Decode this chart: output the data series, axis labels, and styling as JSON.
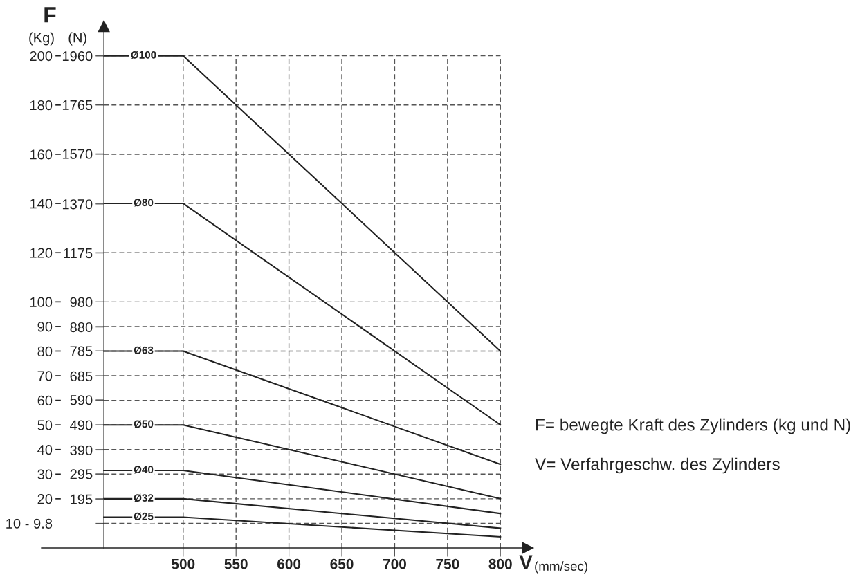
{
  "chart_data": {
    "type": "line",
    "xlabel": "V",
    "ylabel": "F",
    "annotations": [
      "(Kg)",
      "(N)",
      "(mm/sec)",
      "F= bewegte Kraft des Zylinders (kg und N)",
      "V= Verfahrgeschw. des Zylinders"
    ],
    "x": [
      425,
      500,
      800
    ],
    "series": [
      {
        "name": "Ø100",
        "color": "#222222",
        "values": [
          200,
          200,
          80
        ]
      },
      {
        "name": "Ø80",
        "color": "#222222",
        "values": [
          140,
          140,
          50
        ]
      },
      {
        "name": "Ø63",
        "color": "#222222",
        "values": [
          80,
          80,
          34
        ]
      },
      {
        "name": "Ø50",
        "color": "#222222",
        "values": [
          50,
          50,
          20
        ]
      },
      {
        "name": "Ø40",
        "color": "#222222",
        "values": [
          31.5,
          31.5,
          14
        ]
      },
      {
        "name": "Ø32",
        "color": "#222222",
        "values": [
          20,
          20,
          8
        ]
      },
      {
        "name": "Ø25",
        "color": "#222222",
        "values": [
          12.5,
          12.5,
          4.5
        ]
      }
    ],
    "xlim": [
      366,
      826
    ],
    "ylim": [
      0,
      212
    ],
    "y2lim": [
      0,
      2078
    ],
    "xticks": [
      500,
      550,
      600,
      650,
      700,
      750,
      800
    ],
    "yticks": [
      {
        "value": 10,
        "label": "10 - 9.8"
      },
      20,
      30,
      40,
      50,
      60,
      70,
      80,
      90,
      100,
      120,
      140,
      160,
      180,
      200
    ],
    "y2ticks": [
      195,
      295,
      390,
      490,
      590,
      685,
      785,
      880,
      980,
      1175,
      1370,
      1570,
      1765,
      1960
    ],
    "grid": true
  }
}
